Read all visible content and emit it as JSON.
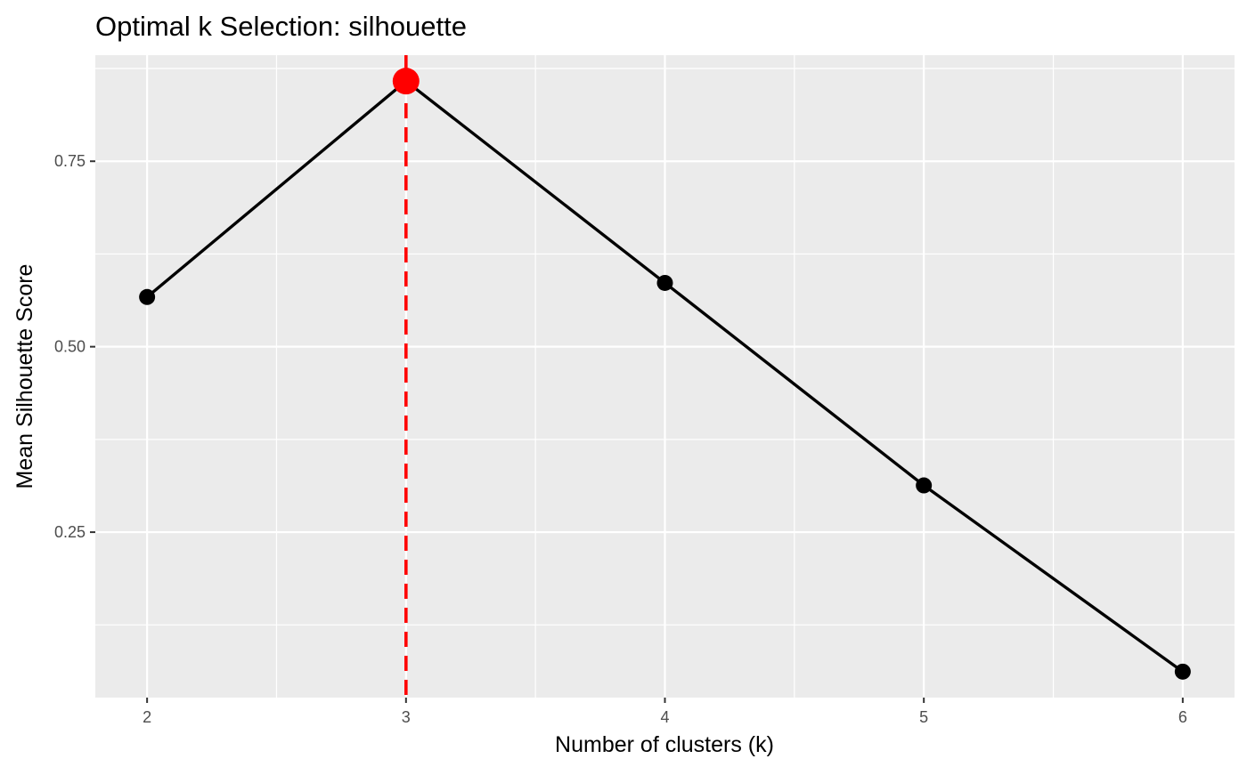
{
  "chart_data": {
    "type": "line",
    "title": "Optimal k Selection: silhouette",
    "xlabel": "Number of clusters (k)",
    "ylabel": "Mean Silhouette Score",
    "x": [
      2,
      3,
      4,
      5,
      6
    ],
    "y": [
      0.567,
      0.858,
      0.586,
      0.313,
      0.062
    ],
    "x_ticks": [
      "2",
      "3",
      "4",
      "5",
      "6"
    ],
    "y_ticks": [
      "0.25",
      "0.50",
      "0.75"
    ],
    "y_tick_values": [
      0.25,
      0.5,
      0.75
    ],
    "xlim": [
      1.8,
      6.2
    ],
    "ylim": [
      0.027,
      0.893
    ],
    "highlight_k": 3,
    "grid": true,
    "colors": {
      "panel_background": "#ebebeb",
      "grid": "#ffffff",
      "line": "#000000",
      "point": "#000000",
      "highlight": "#ff0000"
    }
  }
}
